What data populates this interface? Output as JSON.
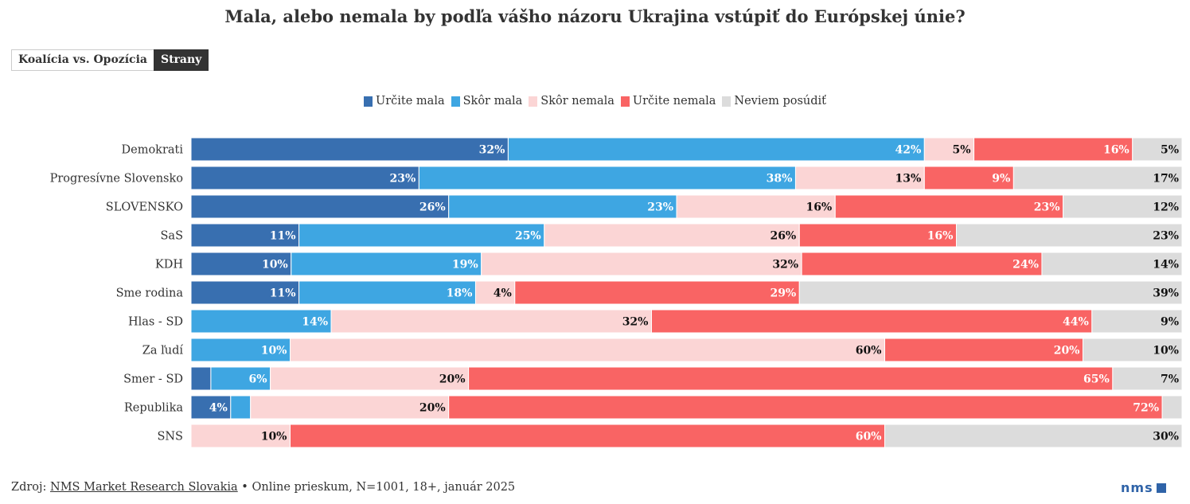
{
  "toggle": {
    "left_label": "Koalícia vs. Opozícia",
    "right_label": "Strany",
    "active": "Strany"
  },
  "footer": {
    "prefix": "Zdroj: ",
    "source_link": "NMS Market Research Slovakia",
    "rest": " • Online prieskum, N=1001, 18+, január 2025"
  },
  "logo": {
    "text": "nms"
  },
  "colors": {
    "urcite_mala": "#386fb0",
    "skor_mala": "#3ea6e2",
    "skor_nemala": "#fbd5d5",
    "urcite_nemala": "#f96464",
    "neviem": "#dcdcdc"
  },
  "chart_data": {
    "type": "bar",
    "orientation": "horizontal",
    "stacked": true,
    "normalized": true,
    "title": "Mala, alebo nemala by podľa vášho názoru Ukrajina vstúpiť do Európskej únie?",
    "categories": [
      "Demokrati",
      "Progresívne Slovensko",
      "SLOVENSKO",
      "SaS",
      "KDH",
      "Sme rodina",
      "Hlas - SD",
      "Za ľudí",
      "Smer - SD",
      "Republika",
      "SNS"
    ],
    "series": [
      {
        "name": "Určite mala",
        "color": "#386fb0",
        "values": [
          32,
          23,
          26,
          11,
          10,
          11,
          0,
          0,
          2,
          4,
          0
        ],
        "labels": [
          "32%",
          "23%",
          "26%",
          "11%",
          "10%",
          "11%",
          "",
          "",
          "",
          "4%",
          ""
        ],
        "label_color": "#ffffff"
      },
      {
        "name": "Skôr mala",
        "color": "#3ea6e2",
        "values": [
          42,
          38,
          23,
          25,
          19,
          18,
          14,
          10,
          6,
          2,
          0
        ],
        "labels": [
          "42%",
          "38%",
          "23%",
          "25%",
          "19%",
          "18%",
          "14%",
          "10%",
          "6%",
          "",
          ""
        ],
        "label_color": "#ffffff"
      },
      {
        "name": "Skôr nemala",
        "color": "#fbd5d5",
        "values": [
          5,
          13,
          16,
          26,
          32,
          4,
          32,
          60,
          20,
          20,
          10
        ],
        "labels": [
          "5%",
          "13%",
          "16%",
          "26%",
          "32%",
          "4%",
          "32%",
          "60%",
          "20%",
          "20%",
          "10%"
        ],
        "label_color": "#111111"
      },
      {
        "name": "Určite nemala",
        "color": "#f96464",
        "values": [
          16,
          9,
          23,
          16,
          24,
          29,
          44,
          20,
          65,
          72,
          60
        ],
        "labels": [
          "16%",
          "9%",
          "23%",
          "16%",
          "24%",
          "29%",
          "44%",
          "20%",
          "65%",
          "72%",
          "60%"
        ],
        "label_color": "#ffffff"
      },
      {
        "name": "Neviem posúdiť",
        "color": "#dcdcdc",
        "values": [
          5,
          17,
          12,
          23,
          14,
          39,
          9,
          10,
          7,
          2,
          30
        ],
        "labels": [
          "5%",
          "17%",
          "12%",
          "23%",
          "14%",
          "39%",
          "9%",
          "10%",
          "7%",
          "",
          "30%"
        ],
        "label_color": "#111111"
      }
    ]
  }
}
